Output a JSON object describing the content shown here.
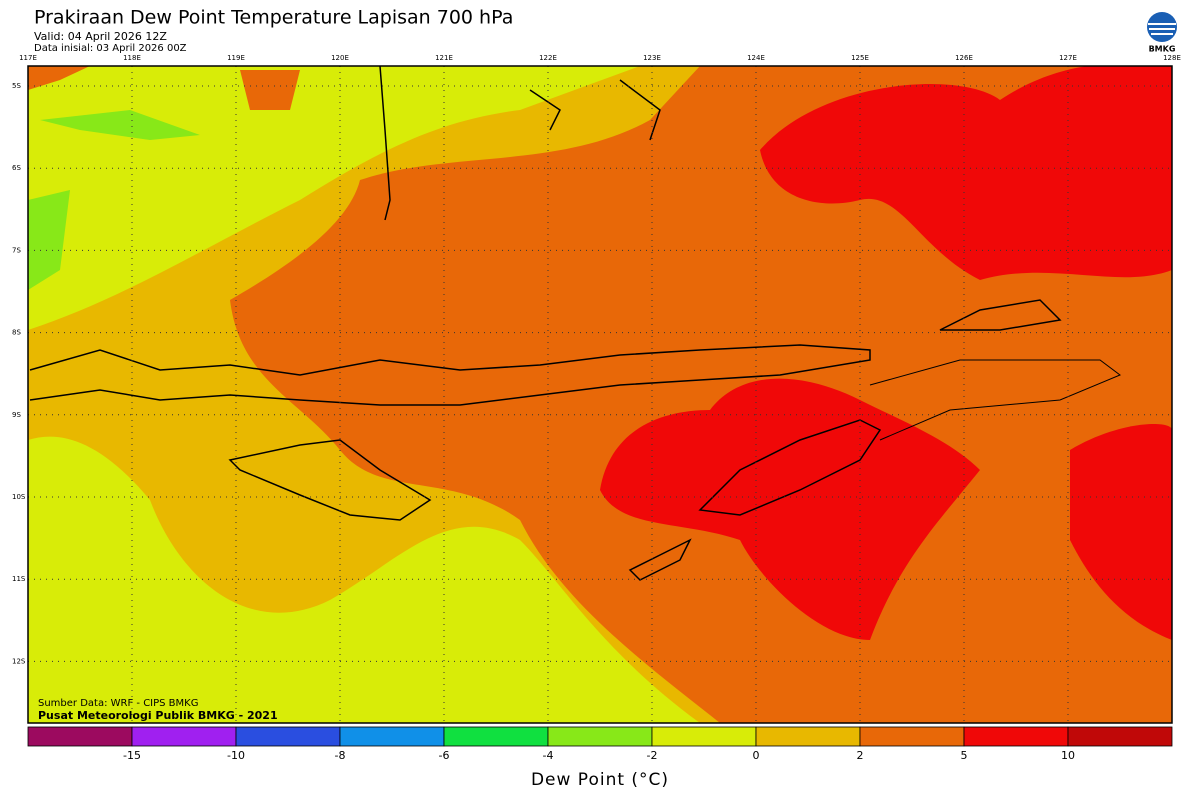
{
  "header": {
    "title": "Prakiraan Dew Point Temperature Lapisan 700 hPa",
    "valid": "Valid: 04 April 2026 12Z",
    "init": "Data inisial: 03 April 2026 00Z",
    "logo": "BMKG"
  },
  "map": {
    "lon_labels": [
      "117E",
      "118E",
      "119E",
      "120E",
      "121E",
      "122E",
      "123E",
      "124E",
      "125E",
      "126E",
      "127E",
      "128E"
    ],
    "lat_labels": [
      "5S",
      "6S",
      "7S",
      "8S",
      "9S",
      "10S",
      "11S",
      "12S"
    ],
    "source": "Sumber Data: WRF - CIPS BMKG",
    "credit": "Pusat Meteorologi Publik BMKG - 2021"
  },
  "colorbar": {
    "ticks": [
      -15,
      -10,
      -8,
      -6,
      -4,
      -2,
      0,
      2,
      5,
      10
    ],
    "colors": [
      "#9c0a5f",
      "#a020f0",
      "#2a4ee0",
      "#1090e8",
      "#10e040",
      "#88e818",
      "#d8ec08",
      "#e8b800",
      "#e86808",
      "#f00808",
      "#c00808"
    ],
    "title": "Dew Point (°C)"
  }
}
